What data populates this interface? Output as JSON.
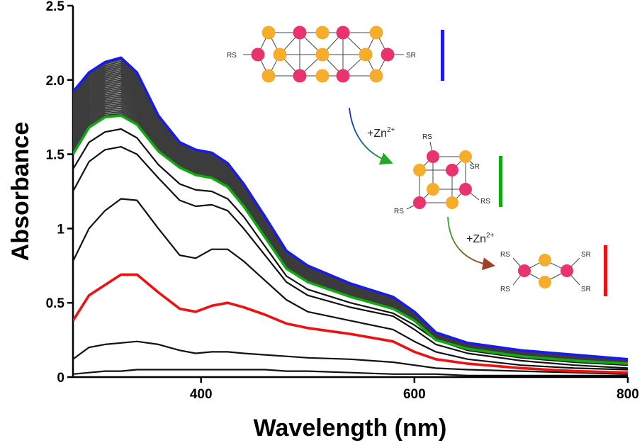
{
  "chart_data": {
    "type": "line",
    "xlabel": "Wavelength (nm)",
    "ylabel": "Absorbance",
    "xlim": [
      280,
      800
    ],
    "ylim": [
      0,
      2.5
    ],
    "xticks": [
      400,
      600,
      800
    ],
    "yticks": [
      {
        "value": 0,
        "label": "0"
      },
      {
        "value": 0.5,
        "label": "0.5"
      },
      {
        "value": 1,
        "label": "1"
      },
      {
        "value": 1.5,
        "label": "1.5"
      },
      {
        "value": 2.0,
        "label": "2.0"
      },
      {
        "value": 2.5,
        "label": "2.5"
      }
    ],
    "grid": false,
    "series": [
      {
        "color": "#111111",
        "x": [
          280,
          295,
          310,
          325,
          340,
          360,
          380,
          395,
          410,
          425,
          440,
          460,
          480,
          500,
          540,
          580,
          600,
          620,
          650,
          700,
          750,
          800
        ],
        "values": [
          0.02,
          0.03,
          0.04,
          0.04,
          0.05,
          0.05,
          0.05,
          0.05,
          0.05,
          0.05,
          0.05,
          0.05,
          0.04,
          0.04,
          0.03,
          0.02,
          0.02,
          0.02,
          0.01,
          0.01,
          0.01,
          0.01
        ]
      },
      {
        "color": "#111111",
        "x": [
          280,
          295,
          310,
          325,
          340,
          360,
          380,
          395,
          410,
          425,
          440,
          460,
          480,
          500,
          540,
          580,
          600,
          620,
          650,
          700,
          750,
          800
        ],
        "values": [
          0.12,
          0.2,
          0.22,
          0.23,
          0.24,
          0.22,
          0.18,
          0.16,
          0.17,
          0.17,
          0.16,
          0.15,
          0.14,
          0.13,
          0.12,
          0.1,
          0.08,
          0.06,
          0.05,
          0.04,
          0.03,
          0.02
        ]
      },
      {
        "color": "#ee1111",
        "x": [
          280,
          295,
          310,
          325,
          340,
          360,
          380,
          395,
          410,
          425,
          440,
          460,
          480,
          500,
          540,
          580,
          600,
          620,
          650,
          700,
          750,
          800
        ],
        "values": [
          0.38,
          0.55,
          0.62,
          0.69,
          0.69,
          0.57,
          0.46,
          0.44,
          0.48,
          0.5,
          0.47,
          0.42,
          0.36,
          0.33,
          0.29,
          0.24,
          0.17,
          0.12,
          0.09,
          0.06,
          0.04,
          0.03
        ]
      },
      {
        "color": "#111111",
        "x": [
          280,
          295,
          310,
          325,
          340,
          360,
          380,
          395,
          410,
          425,
          440,
          460,
          480,
          500,
          540,
          580,
          600,
          620,
          650,
          700,
          750,
          800
        ],
        "values": [
          0.78,
          1.0,
          1.12,
          1.2,
          1.19,
          1.0,
          0.82,
          0.8,
          0.86,
          0.86,
          0.78,
          0.65,
          0.52,
          0.44,
          0.38,
          0.32,
          0.24,
          0.17,
          0.12,
          0.08,
          0.06,
          0.05
        ]
      },
      {
        "color": "#111111",
        "x": [
          280,
          295,
          310,
          325,
          340,
          360,
          380,
          395,
          410,
          425,
          440,
          460,
          480,
          500,
          540,
          580,
          600,
          620,
          650,
          700,
          750,
          800
        ],
        "values": [
          1.25,
          1.45,
          1.53,
          1.55,
          1.5,
          1.34,
          1.19,
          1.15,
          1.16,
          1.12,
          1.0,
          0.82,
          0.64,
          0.55,
          0.47,
          0.41,
          0.32,
          0.22,
          0.16,
          0.11,
          0.08,
          0.06
        ]
      },
      {
        "color": "#111111",
        "x": [
          280,
          295,
          310,
          325,
          340,
          360,
          380,
          395,
          410,
          425,
          440,
          460,
          480,
          500,
          540,
          580,
          600,
          620,
          650,
          700,
          750,
          800
        ],
        "values": [
          1.4,
          1.58,
          1.65,
          1.67,
          1.61,
          1.43,
          1.3,
          1.26,
          1.25,
          1.2,
          1.08,
          0.88,
          0.68,
          0.59,
          0.5,
          0.43,
          0.35,
          0.25,
          0.18,
          0.13,
          0.1,
          0.08
        ]
      },
      {
        "color": "#11aa11",
        "x": [
          280,
          295,
          310,
          325,
          340,
          360,
          380,
          395,
          410,
          425,
          440,
          460,
          480,
          500,
          540,
          580,
          600,
          620,
          650,
          700,
          750,
          800
        ],
        "values": [
          1.5,
          1.68,
          1.75,
          1.76,
          1.7,
          1.52,
          1.41,
          1.36,
          1.34,
          1.28,
          1.15,
          0.94,
          0.73,
          0.64,
          0.54,
          0.46,
          0.38,
          0.25,
          0.19,
          0.14,
          0.11,
          0.09
        ]
      },
      {
        "color": "#1a1aee",
        "x": [
          280,
          295,
          310,
          325,
          340,
          360,
          380,
          395,
          410,
          425,
          440,
          460,
          480,
          500,
          540,
          580,
          600,
          620,
          650,
          700,
          750,
          800
        ],
        "values": [
          1.92,
          2.05,
          2.12,
          2.15,
          2.05,
          1.76,
          1.58,
          1.53,
          1.51,
          1.44,
          1.3,
          1.08,
          0.85,
          0.75,
          0.63,
          0.54,
          0.44,
          0.3,
          0.23,
          0.18,
          0.15,
          0.12
        ]
      }
    ],
    "dense_family": {
      "color": "#3c3c3c",
      "count": 30,
      "lower_series_index": 6,
      "upper_series_index": 7
    }
  },
  "insets": {
    "step1_label": "+Zn",
    "step1_sup": "2+",
    "step2_label": "+Zn",
    "step2_sup": "2+",
    "rs": "RS",
    "sr": "SR",
    "pink": "#e8336d",
    "orange": "#f6ad2b",
    "bar_blue": "#1a1aee",
    "bar_green": "#11aa11",
    "bar_red": "#ee1111"
  }
}
